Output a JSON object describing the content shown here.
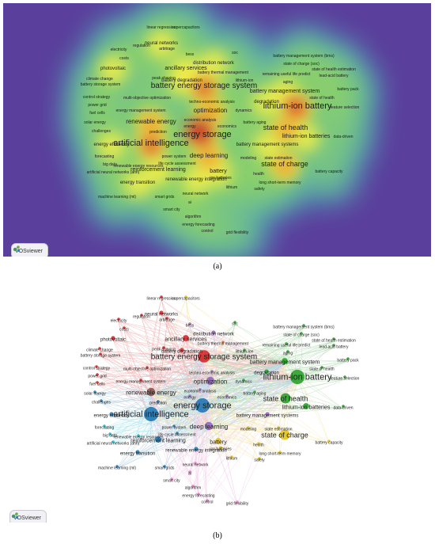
{
  "figure": {
    "caption_a": "(a)",
    "caption_b": "(b)",
    "badge_label": "VOSviewer"
  },
  "colors": {
    "density_bg": "#5b3f9c",
    "cluster_red": "#d62728",
    "cluster_green": "#2ca02c",
    "cluster_blue": "#1f77b4",
    "cluster_yellow": "#e3c21a",
    "cluster_purple": "#9467bd",
    "cluster_cyan": "#17becf",
    "cluster_orange": "#ff7f0e",
    "cluster_brown": "#8c564b",
    "cluster_pink": "#e377c2"
  },
  "keywords": [
    {
      "label": "linear regression",
      "c": "cluster_red"
    },
    {
      "label": "supercapacitors",
      "c": "cluster_yellow"
    },
    {
      "label": "neural networks",
      "c": "cluster_red"
    },
    {
      "label": "arbitrage",
      "c": "cluster_red"
    },
    {
      "label": "regulation",
      "c": "cluster_red"
    },
    {
      "label": "electricity",
      "c": "cluster_red"
    },
    {
      "label": "costs",
      "c": "cluster_red"
    },
    {
      "label": "bess",
      "c": "cluster_purple"
    },
    {
      "label": "soc",
      "c": "cluster_green"
    },
    {
      "label": "distribution network",
      "c": "cluster_purple"
    },
    {
      "label": "battery management system (bms)",
      "c": "cluster_green"
    },
    {
      "label": "photovoltaic",
      "c": "cluster_red"
    },
    {
      "label": "ancillary services",
      "c": "cluster_red"
    },
    {
      "label": "state of charge (soc)",
      "c": "cluster_green"
    },
    {
      "label": "state of health estimation",
      "c": "cluster_green"
    },
    {
      "label": "battery thermal management",
      "c": "cluster_orange"
    },
    {
      "label": "remaining useful life predict",
      "c": "cluster_green"
    },
    {
      "label": "lead-acid battery",
      "c": "cluster_green"
    },
    {
      "label": "peak shaving",
      "c": "cluster_red"
    },
    {
      "label": "climate change",
      "c": "cluster_red"
    },
    {
      "label": "battery degradation",
      "c": "cluster_red"
    },
    {
      "label": "lithium-ion",
      "c": "cluster_green"
    },
    {
      "label": "aging",
      "c": "cluster_green"
    },
    {
      "label": "battery storage system",
      "c": "cluster_red"
    },
    {
      "label": "battery energy storage system",
      "c": "cluster_red"
    },
    {
      "label": "battery pack",
      "c": "cluster_green"
    },
    {
      "label": "battery management system",
      "c": "cluster_green"
    },
    {
      "label": "state of health",
      "c": "cluster_green"
    },
    {
      "label": "control strategy",
      "c": "cluster_red"
    },
    {
      "label": "multi-objective optimization",
      "c": "cluster_red"
    },
    {
      "label": "techno-economic analysis",
      "c": "cluster_purple"
    },
    {
      "label": "degradation",
      "c": "cluster_green"
    },
    {
      "label": "power grid",
      "c": "cluster_red"
    },
    {
      "label": "lithium-ion battery",
      "c": "cluster_green"
    },
    {
      "label": "feature selection",
      "c": "cluster_green"
    },
    {
      "label": "fuel cells",
      "c": "cluster_red"
    },
    {
      "label": "energy management system",
      "c": "cluster_red"
    },
    {
      "label": "optimization",
      "c": "cluster_purple"
    },
    {
      "label": "dynamics",
      "c": "cluster_green"
    },
    {
      "label": "economic analysis",
      "c": "cluster_purple"
    },
    {
      "label": "solar energy",
      "c": "cluster_blue"
    },
    {
      "label": "renewable energy",
      "c": "cluster_brown"
    },
    {
      "label": "energy",
      "c": "cluster_purple"
    },
    {
      "label": "economics",
      "c": "cluster_purple"
    },
    {
      "label": "battery aging",
      "c": "cluster_green"
    },
    {
      "label": "challenges",
      "c": "cluster_blue"
    },
    {
      "label": "prediction",
      "c": "cluster_blue"
    },
    {
      "label": "energy storage",
      "c": "cluster_blue"
    },
    {
      "label": "state of health",
      "c": "cluster_green"
    },
    {
      "label": "lithium-ion batteries",
      "c": "cluster_green"
    },
    {
      "label": "data-driven",
      "c": "cluster_green"
    },
    {
      "label": "energy efficiency",
      "c": "cluster_blue"
    },
    {
      "label": "artificial intelligence",
      "c": "cluster_blue"
    },
    {
      "label": "battery management systems",
      "c": "cluster_purple"
    },
    {
      "label": "forecasting",
      "c": "cluster_cyan"
    },
    {
      "label": "power system",
      "c": "cluster_blue"
    },
    {
      "label": "deep learning",
      "c": "cluster_purple"
    },
    {
      "label": "modeling",
      "c": "cluster_yellow"
    },
    {
      "label": "state estimation",
      "c": "cluster_yellow"
    },
    {
      "label": "big data",
      "c": "cluster_cyan"
    },
    {
      "label": "renewable energy resources",
      "c": "cluster_cyan"
    },
    {
      "label": "life cycle assessment",
      "c": "cluster_blue"
    },
    {
      "label": "state of charge",
      "c": "cluster_yellow"
    },
    {
      "label": "reinforcement learning",
      "c": "cluster_blue"
    },
    {
      "label": "battery",
      "c": "cluster_yellow"
    },
    {
      "label": "artificial neural networks (ann)",
      "c": "cluster_cyan"
    },
    {
      "label": "ion batteries",
      "c": "cluster_yellow"
    },
    {
      "label": "health",
      "c": "cluster_yellow"
    },
    {
      "label": "battery capacity",
      "c": "cluster_yellow"
    },
    {
      "label": "energy transition",
      "c": "cluster_blue"
    },
    {
      "label": "renewable energy integration",
      "c": "cluster_blue"
    },
    {
      "label": "long short-term memory",
      "c": "cluster_yellow"
    },
    {
      "label": "lithium",
      "c": "cluster_yellow"
    },
    {
      "label": "safety",
      "c": "cluster_yellow"
    },
    {
      "label": "machine learning (ml)",
      "c": "cluster_blue"
    },
    {
      "label": "smart grids",
      "c": "cluster_blue"
    },
    {
      "label": "neural network",
      "c": "cluster_pink"
    },
    {
      "label": "ai",
      "c": "cluster_pink"
    },
    {
      "label": "smart city",
      "c": "cluster_pink"
    },
    {
      "label": "algorithm",
      "c": "cluster_pink"
    },
    {
      "label": "energy forecasting",
      "c": "cluster_pink"
    },
    {
      "label": "control",
      "c": "cluster_pink"
    },
    {
      "label": "grid flexibility",
      "c": "cluster_pink"
    }
  ]
}
